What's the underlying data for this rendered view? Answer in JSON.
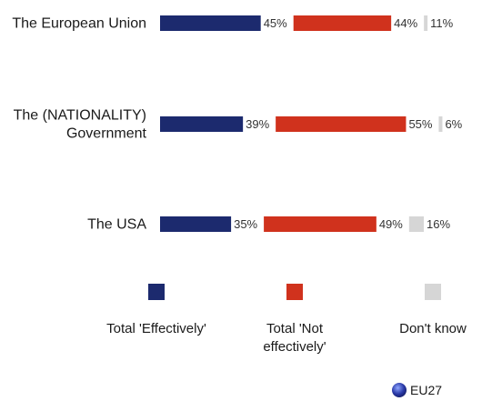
{
  "chart_data": {
    "type": "bar",
    "orientation": "horizontal",
    "stacked": true,
    "categories": [
      [
        "The European Union"
      ],
      [
        "The (NATIONALITY)",
        "Government"
      ],
      [
        "The USA"
      ]
    ],
    "series": [
      {
        "name": "Total 'Effectively'",
        "color": "#1c2a6e",
        "values": [
          45,
          39,
          35
        ]
      },
      {
        "name": "Total 'Not effectively'",
        "color": "#d0321d",
        "values": [
          44,
          55,
          49
        ]
      },
      {
        "name": "Don't know",
        "color": "#d6d6d6",
        "values": [
          11,
          6,
          16
        ]
      }
    ],
    "legend": {
      "placement": "bottom",
      "items": [
        {
          "lines": [
            "Total 'Effectively'"
          ]
        },
        {
          "lines": [
            "Total 'Not",
            "effectively'"
          ]
        },
        {
          "lines": [
            "Don't know"
          ]
        }
      ]
    },
    "value_suffix": "%"
  },
  "badge": {
    "label": "EU27",
    "icon": "eu-globe-icon"
  }
}
